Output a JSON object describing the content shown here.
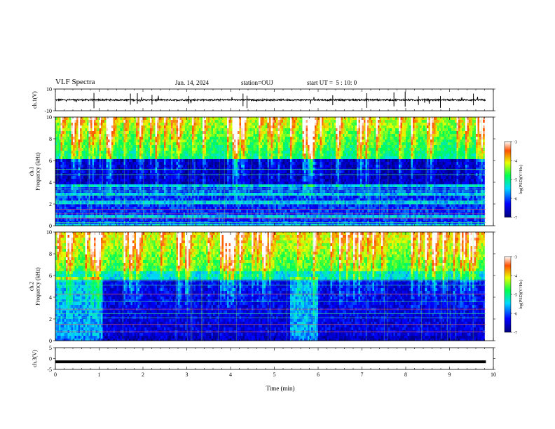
{
  "header": {
    "title": "VLF Spectra",
    "date": "Jan. 14, 2024",
    "station": "station=OUJ",
    "start": "start UT =  5 : 10: 0"
  },
  "chart_data": [
    {
      "type": "line",
      "name": "ch1-waveform",
      "ylabel": "ch.1(V)",
      "ylim": [
        -10,
        10
      ],
      "yticks": [
        "10",
        "-10"
      ],
      "xlim": [
        0,
        10
      ],
      "approx_level": 0,
      "data_end": 9.83
    },
    {
      "type": "heatmap",
      "name": "ch1-spectrogram",
      "ylabel": "ch.1\nFrequency (kHz)",
      "ylim": [
        0,
        10
      ],
      "yticks": [
        "0",
        "2",
        "4",
        "6",
        "8",
        "10"
      ],
      "xlim": [
        0,
        10
      ],
      "data_end": 9.83,
      "colorbar": {
        "label": "log(PSD)(V²/Hz)",
        "range": [
          -7,
          -3
        ],
        "ticks": [
          "-3",
          "-4",
          "-5",
          "-6",
          "-7"
        ]
      },
      "dark_band_kHz": [
        3.8,
        6.0
      ],
      "noise_lines_kHz": [
        0.3,
        0.7,
        1.1,
        1.5,
        2.0,
        2.3,
        2.8,
        3.2,
        3.4,
        4.7,
        5.2
      ]
    },
    {
      "type": "heatmap",
      "name": "ch2-spectrogram",
      "ylabel": "ch.2\nFrequency (kHz)",
      "ylim": [
        0,
        10
      ],
      "yticks": [
        "0",
        "2",
        "4",
        "6",
        "8",
        "10"
      ],
      "xlim": [
        0,
        10
      ],
      "data_end": 9.83,
      "colorbar": {
        "label": "log(PSD)(V²/Hz)",
        "range": [
          -7,
          -3
        ],
        "ticks": [
          "-3",
          "-4",
          "-5",
          "-6",
          "-7"
        ]
      },
      "dark_band_kHz": [
        0.5,
        5.5
      ],
      "noise_lines_kHz": [
        0.8,
        1.5,
        2.1,
        2.5,
        2.9,
        3.6,
        4.3,
        5.1,
        5.5
      ]
    },
    {
      "type": "line",
      "name": "ch3-waveform",
      "ylabel": "ch.3(V)",
      "ylim": [
        -5,
        5
      ],
      "yticks": [
        "5",
        "0",
        "-5"
      ],
      "xlim": [
        0,
        10
      ],
      "approx_level": -1.5,
      "data_end": 9.83
    }
  ],
  "xaxis": {
    "label": "Time (min)",
    "ticks": [
      "0",
      "1",
      "2",
      "3",
      "4",
      "5",
      "6",
      "7",
      "8",
      "9",
      "10"
    ]
  }
}
